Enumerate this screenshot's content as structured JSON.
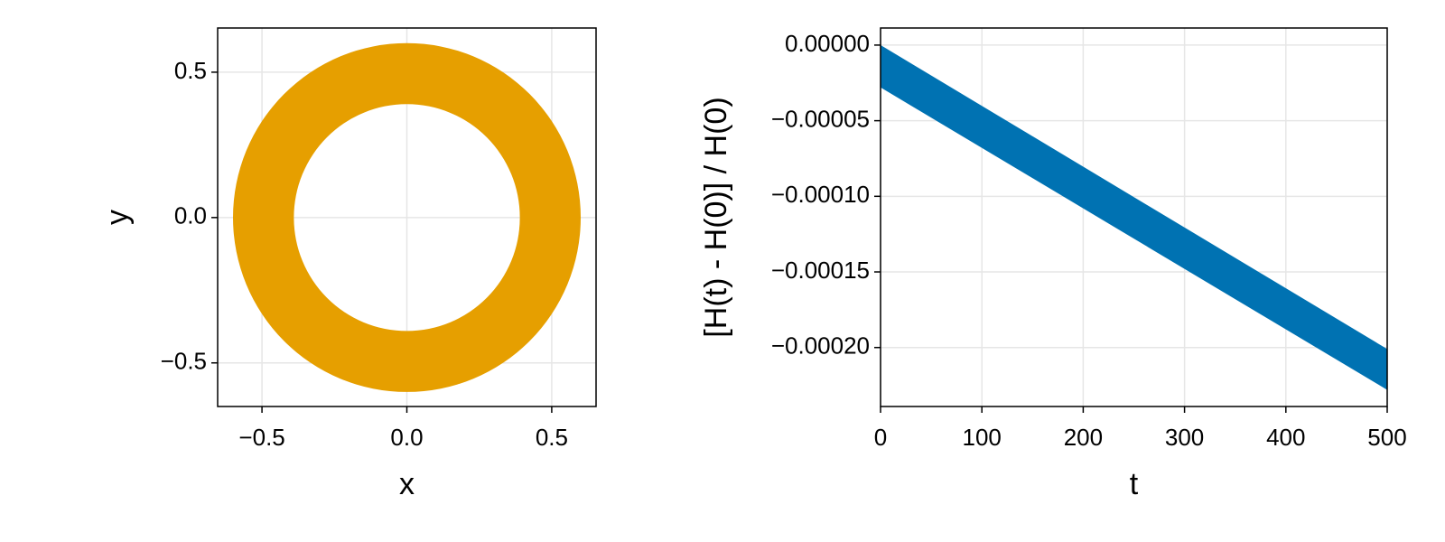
{
  "chart_data": [
    {
      "type": "ring",
      "xlabel": "x",
      "ylabel": "y",
      "inner_radius": 0.39,
      "outer_radius": 0.6,
      "color": "#e69f00",
      "xlim": [
        -0.653,
        0.653
      ],
      "ylim": [
        -0.65,
        0.652
      ],
      "xticks": [
        {
          "value": -0.5,
          "label": "−0.5"
        },
        {
          "value": 0,
          "label": "0.0"
        },
        {
          "value": 0.5,
          "label": "0.5"
        }
      ],
      "yticks": [
        {
          "value": -0.5,
          "label": "−0.5"
        },
        {
          "value": 0,
          "label": "0.0"
        },
        {
          "value": 0.5,
          "label": "0.5"
        }
      ],
      "grid": true
    },
    {
      "type": "band",
      "xlabel": "t",
      "ylabel": "[H(t) - H(0)] / H(0)",
      "color": "#0072b2",
      "x": [
        0,
        500
      ],
      "upper": [
        0,
        -0.000201
      ],
      "lower": [
        -2.8e-05,
        -0.000228
      ],
      "xlim": [
        0,
        500
      ],
      "ylim": [
        -0.000239,
        1.13e-05
      ],
      "xticks": [
        0,
        100,
        200,
        300,
        400,
        500
      ],
      "yticks": [
        {
          "value": 0,
          "label": "0.00000"
        },
        {
          "value": -5e-05,
          "label": "−0.00005"
        },
        {
          "value": -0.0001,
          "label": "−0.00010"
        },
        {
          "value": -0.00015,
          "label": "−0.00015"
        },
        {
          "value": -0.0002,
          "label": "−0.00020"
        }
      ],
      "grid": true
    }
  ]
}
